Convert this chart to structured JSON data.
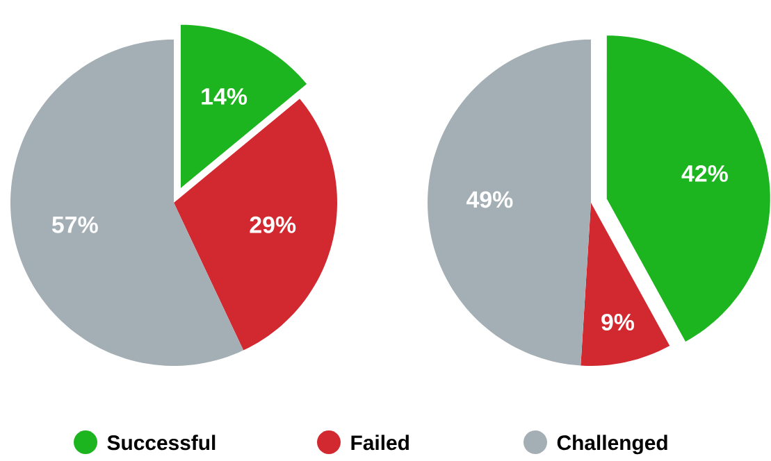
{
  "chart_data": [
    {
      "type": "pie",
      "categories": [
        "Successful",
        "Failed",
        "Challenged"
      ],
      "values": [
        14,
        29,
        57
      ],
      "value_labels": [
        "14%",
        "29%",
        "57%"
      ],
      "colors": [
        "#1db51f",
        "#d1292f",
        "#a4afb5"
      ],
      "legend": "bottom"
    },
    {
      "type": "pie",
      "categories": [
        null,
        null,
        null
      ],
      "values": [
        42,
        9,
        49
      ],
      "value_labels": [
        "42%",
        "9%",
        "49%"
      ],
      "colors": [
        "#1db51f",
        "#d1292f",
        "#a4afb5"
      ]
    }
  ]
}
